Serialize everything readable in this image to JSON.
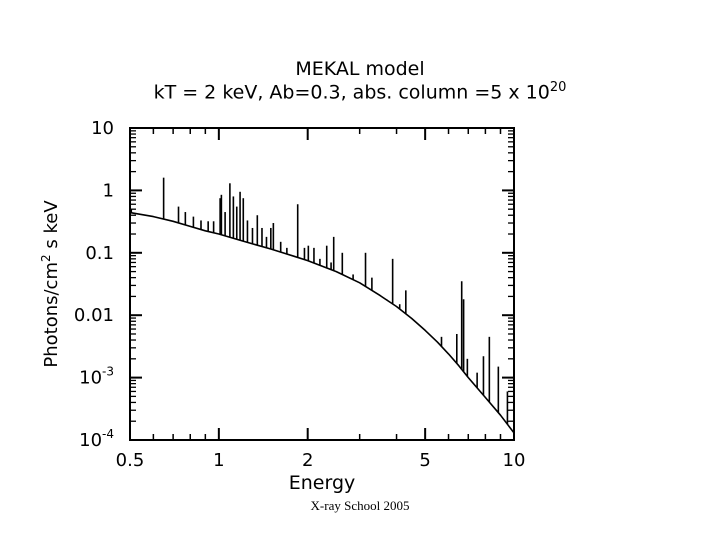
{
  "chart_data": {
    "type": "line",
    "title": "MEKAL model",
    "subtitle": {
      "prefix": "kT = 2 keV, Ab=0.3, abs. column =5 x 10",
      "superscript": "20"
    },
    "xlabel": "Energy",
    "ylabel": {
      "prefix": "Photons/cm",
      "superscript": "2",
      "suffix": " s keV"
    },
    "xscale": "log",
    "yscale": "log",
    "xlim": [
      0.5,
      10
    ],
    "ylim": [
      0.0001,
      10
    ],
    "x_ticks": [
      {
        "value": 0.5,
        "label": "0.5"
      },
      {
        "value": 1,
        "label": "1"
      },
      {
        "value": 2,
        "label": "2"
      },
      {
        "value": 5,
        "label": "5"
      },
      {
        "value": 10,
        "label": "10"
      }
    ],
    "y_ticks": [
      {
        "value": 10,
        "label": "10"
      },
      {
        "value": 1,
        "label": "1"
      },
      {
        "value": 0.1,
        "label": "0.1"
      },
      {
        "value": 0.01,
        "label": "0.01"
      },
      {
        "value": 0.001,
        "base": "10",
        "exp": "-3"
      },
      {
        "value": 0.0001,
        "base": "10",
        "exp": "-4"
      }
    ],
    "continuum": [
      [
        0.5,
        0.44
      ],
      [
        0.6,
        0.38
      ],
      [
        0.7,
        0.32
      ],
      [
        0.8,
        0.265
      ],
      [
        0.9,
        0.225
      ],
      [
        1.0,
        0.2
      ],
      [
        1.2,
        0.155
      ],
      [
        1.5,
        0.115
      ],
      [
        1.8,
        0.088
      ],
      [
        2.0,
        0.075
      ],
      [
        2.5,
        0.05
      ],
      [
        3.0,
        0.033
      ],
      [
        3.5,
        0.021
      ],
      [
        4.0,
        0.0138
      ],
      [
        4.5,
        0.0089
      ],
      [
        5.0,
        0.0057
      ],
      [
        5.5,
        0.0037
      ],
      [
        6.0,
        0.0024
      ],
      [
        6.5,
        0.00155
      ],
      [
        7.0,
        0.001
      ],
      [
        8.0,
        0.00048
      ],
      [
        9.0,
        0.00025
      ],
      [
        10.0,
        0.00013
      ]
    ],
    "lines": [
      [
        0.505,
        0.5
      ],
      [
        0.65,
        1.6
      ],
      [
        0.73,
        0.55
      ],
      [
        0.77,
        0.45
      ],
      [
        0.82,
        0.38
      ],
      [
        0.87,
        0.33
      ],
      [
        0.92,
        0.32
      ],
      [
        0.96,
        0.32
      ],
      [
        1.01,
        0.75
      ],
      [
        1.02,
        0.85
      ],
      [
        1.05,
        0.45
      ],
      [
        1.09,
        1.3
      ],
      [
        1.12,
        0.8
      ],
      [
        1.15,
        0.55
      ],
      [
        1.18,
        0.95
      ],
      [
        1.21,
        0.75
      ],
      [
        1.25,
        0.33
      ],
      [
        1.3,
        0.25
      ],
      [
        1.35,
        0.4
      ],
      [
        1.4,
        0.25
      ],
      [
        1.45,
        0.18
      ],
      [
        1.5,
        0.25
      ],
      [
        1.53,
        0.3
      ],
      [
        1.62,
        0.15
      ],
      [
        1.7,
        0.12
      ],
      [
        1.85,
        0.6
      ],
      [
        1.95,
        0.12
      ],
      [
        2.01,
        0.13
      ],
      [
        2.1,
        0.12
      ],
      [
        2.2,
        0.08
      ],
      [
        2.32,
        0.13
      ],
      [
        2.4,
        0.07
      ],
      [
        2.45,
        0.18
      ],
      [
        2.62,
        0.1
      ],
      [
        2.85,
        0.045
      ],
      [
        3.14,
        0.1
      ],
      [
        3.3,
        0.04
      ],
      [
        3.7,
        0.018
      ],
      [
        3.88,
        0.08
      ],
      [
        4.1,
        0.015
      ],
      [
        4.3,
        0.025
      ],
      [
        5.68,
        0.0045
      ],
      [
        6.4,
        0.005
      ],
      [
        6.65,
        0.035
      ],
      [
        6.75,
        0.018
      ],
      [
        6.95,
        0.002
      ],
      [
        7.5,
        0.0012
      ],
      [
        7.88,
        0.0022
      ],
      [
        8.25,
        0.0045
      ],
      [
        8.85,
        0.0015
      ],
      [
        9.5,
        0.0006
      ]
    ]
  },
  "footer": "X-ray School 2005"
}
